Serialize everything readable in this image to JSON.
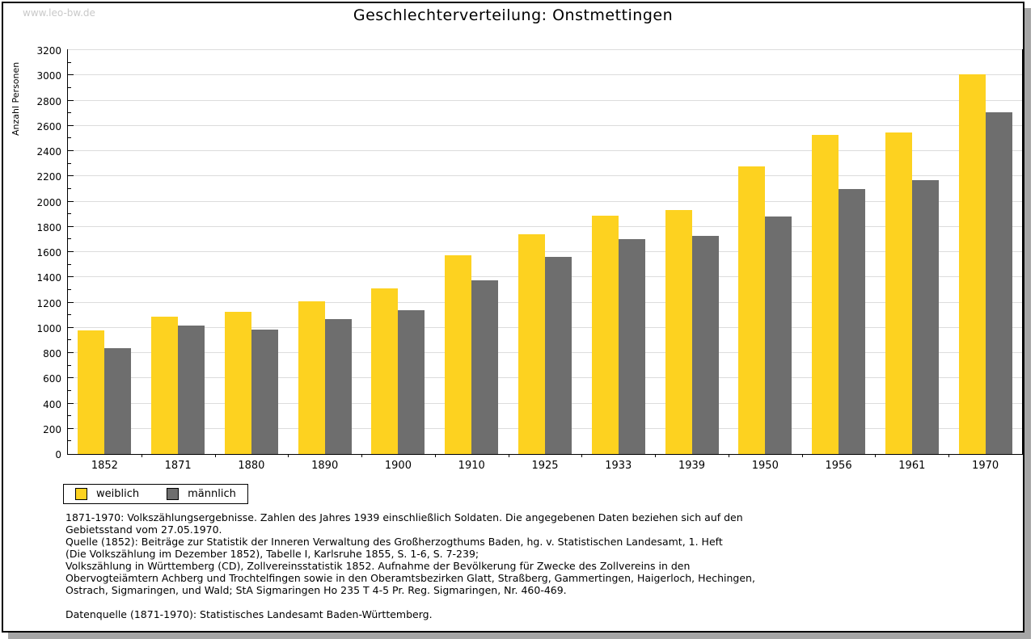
{
  "watermark": "www.leo-bw.de",
  "title": "Geschlechterverteilung: Onstmettingen",
  "colors": {
    "female_bar": "#fdd220",
    "male_bar": "#6e6e6e",
    "grid": "#dcdcdc",
    "watermark": "#c9c9c9",
    "shadow": "#a6a6a6"
  },
  "chart_data": {
    "type": "bar",
    "title": "Geschlechterverteilung: Onstmettingen",
    "ylabel": "Anzahl Personen",
    "xlabel": "",
    "ylim": [
      0,
      3200
    ],
    "ytick_step": 200,
    "ytick_minor_step": 100,
    "grid": true,
    "legend_position": "bottom-left",
    "categories": [
      "1852",
      "1871",
      "1880",
      "1890",
      "1900",
      "1910",
      "1925",
      "1933",
      "1939",
      "1950",
      "1956",
      "1961",
      "1970"
    ],
    "series": [
      {
        "name": "weiblich",
        "color": "#fdd220",
        "values": [
          980,
          1085,
          1125,
          1210,
          1315,
          1575,
          1740,
          1890,
          1935,
          2280,
          2525,
          2550,
          3010
        ]
      },
      {
        "name": "männlich",
        "color": "#6e6e6e",
        "values": [
          840,
          1015,
          985,
          1070,
          1140,
          1375,
          1560,
          1700,
          1730,
          1880,
          2100,
          2170,
          2710
        ]
      }
    ]
  },
  "footnotes": {
    "lines": [
      "1871-1970: Volkszählungsergebnisse. Zahlen des Jahres 1939 einschließlich Soldaten. Die angegebenen Daten beziehen sich auf den",
      "Gebietsstand vom 27.05.1970.",
      "Quelle (1852): Beiträge zur Statistik der Inneren Verwaltung des Großherzogthums Baden, hg. v. Statistischen Landesamt, 1. Heft",
      "(Die Volkszählung im Dezember 1852), Tabelle I, Karlsruhe 1855, S. 1-6, S. 7-239;",
      "Volkszählung in Württemberg (CD), Zollvereinsstatistik 1852. Aufnahme der Bevölkerung für Zwecke des Zollvereins in den",
      "Obervogteiämtern Achberg und Trochtelfingen sowie in den Oberamtsbezirken Glatt, Straßberg, Gammertingen, Haigerloch, Hechingen,",
      "Ostrach, Sigmaringen, und Wald; StA Sigmaringen Ho 235 T 4-5 Pr. Reg. Sigmaringen, Nr. 460-469."
    ],
    "datasource": "Datenquelle (1871-1970): Statistisches Landesamt Baden-Württemberg."
  }
}
